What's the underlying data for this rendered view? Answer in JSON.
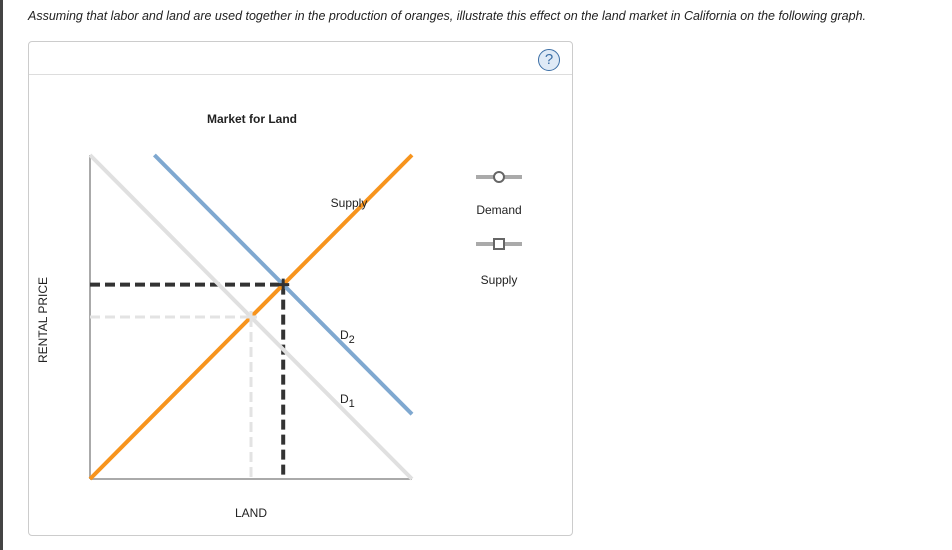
{
  "prompt": "Assuming that labor and land are used together in the production of oranges, illustrate this effect on the land market in California on the following graph.",
  "help_icon": "question-mark-icon",
  "chart_data": {
    "type": "line",
    "title": "Market for Land",
    "xlabel": "LAND",
    "ylabel": "RENTAL PRICE",
    "xlim": [
      0,
      100
    ],
    "ylim": [
      0,
      100
    ],
    "series": [
      {
        "name": "Supply",
        "label": "Supply",
        "color": "#f7941d",
        "x": [
          0,
          100
        ],
        "y": [
          0,
          100
        ]
      },
      {
        "name": "D1",
        "label": "D",
        "sub": "1",
        "color": "#e0e0e0",
        "x": [
          0,
          100
        ],
        "y": [
          100,
          0
        ]
      },
      {
        "name": "D2",
        "label": "D",
        "sub": "2",
        "color": "#7fa8d0",
        "x": [
          20,
          100
        ],
        "y": [
          100,
          20
        ]
      }
    ],
    "equilibria": [
      {
        "x": 50,
        "y": 50,
        "color": "#e3e3e3"
      },
      {
        "x": 60,
        "y": 60,
        "color": "#333333"
      }
    ]
  },
  "legend": [
    {
      "label": "Demand",
      "marker": "circle"
    },
    {
      "label": "Supply",
      "marker": "square"
    }
  ]
}
